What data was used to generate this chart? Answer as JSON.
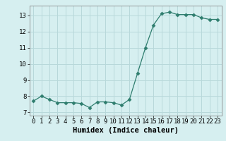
{
  "x": [
    0,
    1,
    2,
    3,
    4,
    5,
    6,
    7,
    8,
    9,
    10,
    11,
    12,
    13,
    14,
    15,
    16,
    17,
    18,
    19,
    20,
    21,
    22,
    23
  ],
  "y": [
    7.7,
    8.0,
    7.8,
    7.6,
    7.6,
    7.6,
    7.55,
    7.3,
    7.65,
    7.65,
    7.6,
    7.45,
    7.8,
    9.4,
    11.0,
    12.4,
    13.1,
    13.2,
    13.05,
    13.05,
    13.05,
    12.85,
    12.75,
    12.75
  ],
  "line_color": "#2e7d6e",
  "marker": "D",
  "marker_size": 2.5,
  "bg_color": "#d6eff0",
  "grid_color": "#b8d8da",
  "xlabel": "Humidex (Indice chaleur)",
  "ylim": [
    6.8,
    13.6
  ],
  "xlim": [
    -0.5,
    23.5
  ],
  "yticks": [
    7,
    8,
    9,
    10,
    11,
    12,
    13
  ],
  "xticks": [
    0,
    1,
    2,
    3,
    4,
    5,
    6,
    7,
    8,
    9,
    10,
    11,
    12,
    13,
    14,
    15,
    16,
    17,
    18,
    19,
    20,
    21,
    22,
    23
  ],
  "xlabel_fontsize": 7.5,
  "tick_fontsize": 6.5
}
